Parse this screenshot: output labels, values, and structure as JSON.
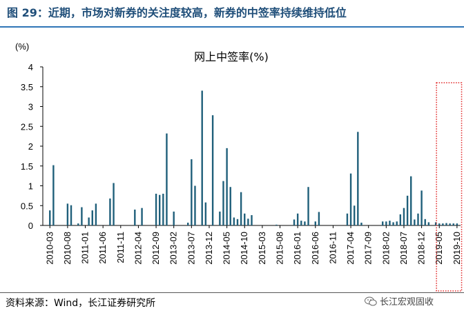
{
  "header": {
    "figure_title": "图 29：近期，市场对新券的关注度较高，新券的中签率持续维持低位"
  },
  "footer": {
    "source": "资料来源：Wind，长江证券研究所",
    "watermark": "长江宏观固收"
  },
  "colors": {
    "bar": "#1f5f7a",
    "title": "#1f4e79",
    "highlight_box": "#e02020"
  },
  "chart_data": {
    "type": "bar",
    "title": "网上中签率(%)",
    "ylabel": "(%)",
    "ylim": [
      0,
      4
    ],
    "yticks": [
      "0",
      "0.5",
      "1",
      "1.5",
      "2",
      "2.5",
      "3",
      "3.5",
      "4"
    ],
    "x_tick_labels": [
      "2010-03",
      "2010-08",
      "2011-01",
      "2011-06",
      "2011-11",
      "2012-04",
      "2012-09",
      "2013-02",
      "2013-07",
      "2013-12",
      "2014-05",
      "2014-10",
      "2015-03",
      "2015-08",
      "2016-01",
      "2016-06",
      "2016-11",
      "2017-04",
      "2017-09",
      "2018-02",
      "2018-07",
      "2018-12",
      "2019-05",
      "2019-10"
    ],
    "x_range": [
      "2010-01",
      "2019-11"
    ],
    "bars": [
      {
        "x": "2010-03",
        "value": 0.38
      },
      {
        "x": "2010-04",
        "value": 1.52
      },
      {
        "x": "2010-08",
        "value": 0.55
      },
      {
        "x": "2010-09",
        "value": 0.51
      },
      {
        "x": "2010-11",
        "value": 0.05
      },
      {
        "x": "2010-12",
        "value": 0.46
      },
      {
        "x": "2011-02",
        "value": 0.2
      },
      {
        "x": "2011-03",
        "value": 0.38
      },
      {
        "x": "2011-04",
        "value": 0.55
      },
      {
        "x": "2011-08",
        "value": 0.68
      },
      {
        "x": "2011-09",
        "value": 1.07
      },
      {
        "x": "2012-03",
        "value": 0.4
      },
      {
        "x": "2012-05",
        "value": 0.44
      },
      {
        "x": "2012-09",
        "value": 0.8
      },
      {
        "x": "2012-10",
        "value": 0.77
      },
      {
        "x": "2012-11",
        "value": 0.8
      },
      {
        "x": "2012-12",
        "value": 2.32
      },
      {
        "x": "2013-02",
        "value": 0.35
      },
      {
        "x": "2013-06",
        "value": 0.07
      },
      {
        "x": "2013-07",
        "value": 1.67
      },
      {
        "x": "2013-08",
        "value": 1.0
      },
      {
        "x": "2013-10",
        "value": 3.4
      },
      {
        "x": "2013-11",
        "value": 0.58
      },
      {
        "x": "2014-01",
        "value": 2.78
      },
      {
        "x": "2014-03",
        "value": 0.35
      },
      {
        "x": "2014-04",
        "value": 1.12
      },
      {
        "x": "2014-05",
        "value": 1.95
      },
      {
        "x": "2014-06",
        "value": 0.97
      },
      {
        "x": "2014-07",
        "value": 0.2
      },
      {
        "x": "2014-08",
        "value": 0.16
      },
      {
        "x": "2014-09",
        "value": 0.84
      },
      {
        "x": "2014-10",
        "value": 0.3
      },
      {
        "x": "2014-11",
        "value": 0.17
      },
      {
        "x": "2014-12",
        "value": 0.26
      },
      {
        "x": "2015-07",
        "value": 0.02
      },
      {
        "x": "2015-12",
        "value": 0.15
      },
      {
        "x": "2016-01",
        "value": 0.3
      },
      {
        "x": "2016-02",
        "value": 0.12
      },
      {
        "x": "2016-03",
        "value": 0.1
      },
      {
        "x": "2016-04",
        "value": 0.97
      },
      {
        "x": "2016-06",
        "value": 0.1
      },
      {
        "x": "2016-07",
        "value": 0.34
      },
      {
        "x": "2017-03",
        "value": 0.3
      },
      {
        "x": "2017-04",
        "value": 1.31
      },
      {
        "x": "2017-05",
        "value": 0.5
      },
      {
        "x": "2017-06",
        "value": 2.36
      },
      {
        "x": "2017-07",
        "value": 0.07
      },
      {
        "x": "2018-01",
        "value": 0.1
      },
      {
        "x": "2018-02",
        "value": 0.1
      },
      {
        "x": "2018-03",
        "value": 0.12
      },
      {
        "x": "2018-04",
        "value": 0.08
      },
      {
        "x": "2018-05",
        "value": 0.1
      },
      {
        "x": "2018-06",
        "value": 0.28
      },
      {
        "x": "2018-07",
        "value": 0.44
      },
      {
        "x": "2018-08",
        "value": 0.75
      },
      {
        "x": "2018-09",
        "value": 1.24
      },
      {
        "x": "2018-10",
        "value": 0.15
      },
      {
        "x": "2018-11",
        "value": 0.3
      },
      {
        "x": "2018-12",
        "value": 0.88
      },
      {
        "x": "2019-01",
        "value": 0.16
      },
      {
        "x": "2019-02",
        "value": 0.08
      },
      {
        "x": "2019-04",
        "value": 0.08
      },
      {
        "x": "2019-05",
        "value": 0.05
      },
      {
        "x": "2019-06",
        "value": 0.05
      },
      {
        "x": "2019-07",
        "value": 0.06
      },
      {
        "x": "2019-08",
        "value": 0.05
      },
      {
        "x": "2019-09",
        "value": 0.05
      },
      {
        "x": "2019-10",
        "value": 0.05
      }
    ],
    "highlight_range": {
      "start": "2019-05",
      "end": "2019-11",
      "ymax": 3.6
    },
    "grid": false,
    "legend": "none"
  }
}
